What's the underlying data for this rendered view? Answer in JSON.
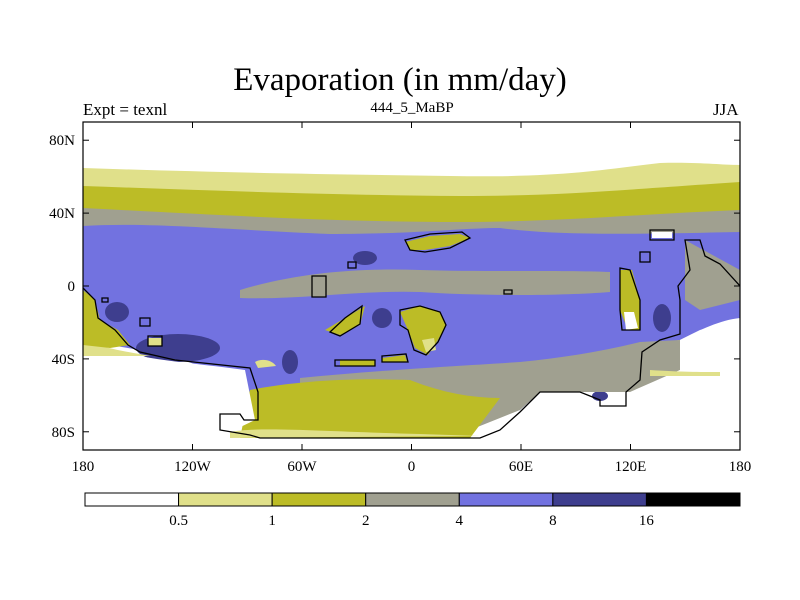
{
  "chart_data": {
    "type": "heatmap",
    "title": "Evaporation (in mm/day)",
    "left_string": "Expt = texnl",
    "center_string": "444_5_MaBP",
    "right_string": "JJA",
    "x_axis": {
      "range": [
        -180,
        180
      ],
      "ticks": [
        {
          "value": -180,
          "label": "180"
        },
        {
          "value": -120,
          "label": "120W"
        },
        {
          "value": -60,
          "label": "60W"
        },
        {
          "value": 0,
          "label": "0"
        },
        {
          "value": 60,
          "label": "60E"
        },
        {
          "value": 120,
          "label": "120E"
        },
        {
          "value": 180,
          "label": "180"
        }
      ]
    },
    "y_axis": {
      "range": [
        -90,
        90
      ],
      "ticks": [
        {
          "value": 80,
          "label": "80N"
        },
        {
          "value": 40,
          "label": "40N"
        },
        {
          "value": 0,
          "label": "0"
        },
        {
          "value": -40,
          "label": "40S"
        },
        {
          "value": -80,
          "label": "80S"
        }
      ]
    },
    "colorbar": {
      "levels": [
        "0.5",
        "1",
        "2",
        "4",
        "8",
        "16"
      ],
      "colors": [
        "#ffffff",
        "#e0e08a",
        "#bcbc26",
        "#a0a090",
        "#7272e0",
        "#3e3e8e",
        "#000000"
      ]
    },
    "zonal_bands": [
      {
        "lat_from": 90,
        "lat_to": 64,
        "value_range": "<0.5"
      },
      {
        "lat_from": 64,
        "lat_to": 52,
        "value_range": "0.5-1"
      },
      {
        "lat_from": 52,
        "lat_to": 42,
        "value_range": "1-2"
      },
      {
        "lat_from": 42,
        "lat_to": 35,
        "value_range": "2-4"
      },
      {
        "lat_from": 35,
        "lat_to": -45,
        "value_range": "4-8"
      },
      {
        "lat_from": -45,
        "lat_to": -85,
        "value_range": "2-4 / 1-2 (land)"
      },
      {
        "lat_from": -85,
        "lat_to": -90,
        "value_range": "<0.5"
      }
    ]
  }
}
